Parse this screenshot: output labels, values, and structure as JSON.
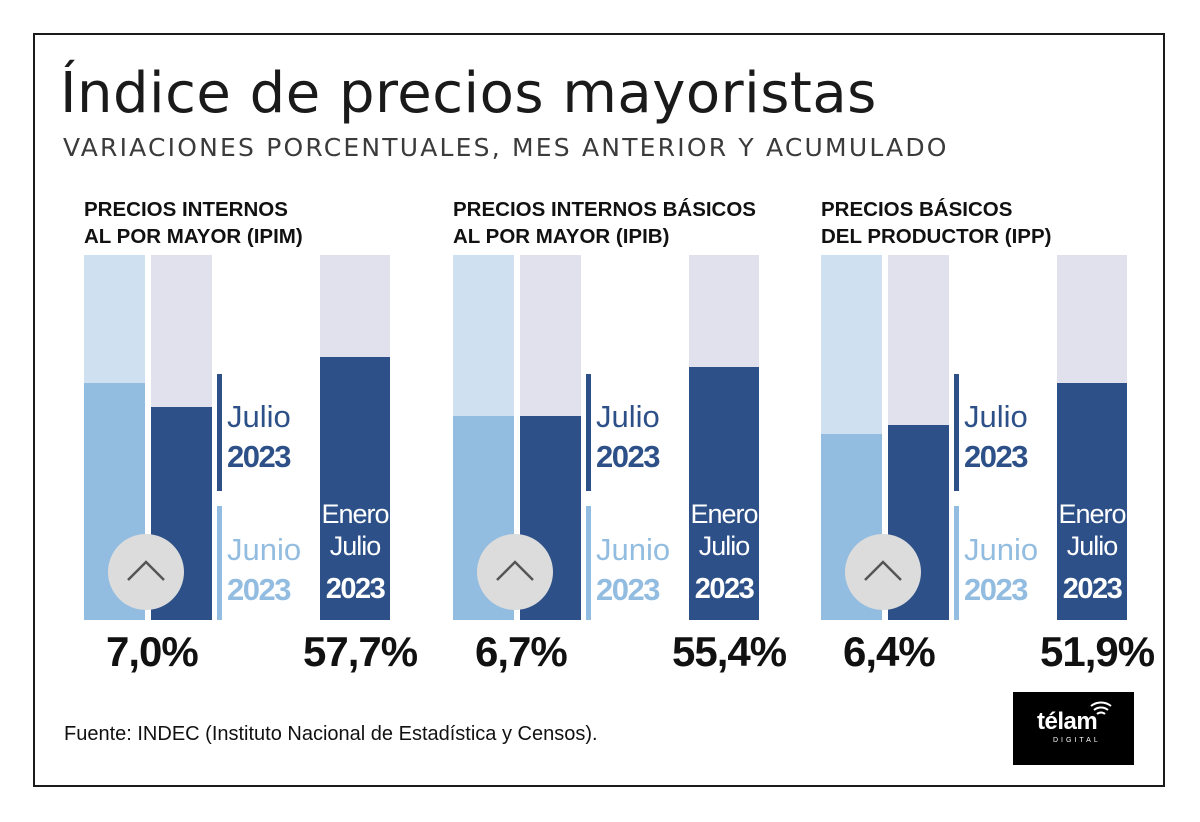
{
  "title": "Índice de precios mayoristas",
  "subtitle": "VARIACIONES PORCENTUALES, MES ANTERIOR Y ACUMULADO",
  "colors": {
    "current_fill": "#2c5087",
    "previous_fill": "#93bde0",
    "previous_track": "#cfe0f1",
    "track": "#e0e1ec"
  },
  "chart_data": [
    {
      "type": "bar",
      "title_line1": "PRECIOS INTERNOS",
      "title_line2": "AL POR MAYOR (IPIM)",
      "series": [
        {
          "label_line1": "Junio",
          "label_line2": "2023",
          "value": 7.8
        },
        {
          "label_line1": "Julio",
          "label_line2": "2023",
          "value": 7.0
        },
        {
          "label_line1": "Enero",
          "label_line2": "Julio",
          "label_line3": "2023",
          "value": 57.7
        }
      ],
      "value_month_text": "7,0%",
      "value_acc_text": "57,7%",
      "trend_icon": "chevron-up-icon"
    },
    {
      "type": "bar",
      "title_line1": "PRECIOS INTERNOS BÁSICOS",
      "title_line2": "AL POR MAYOR (IPIB)",
      "series": [
        {
          "label_line1": "Junio",
          "label_line2": "2023",
          "value": 6.7
        },
        {
          "label_line1": "Julio",
          "label_line2": "2023",
          "value": 6.7
        },
        {
          "label_line1": "Enero",
          "label_line2": "Julio",
          "label_line3": "2023",
          "value": 55.4
        }
      ],
      "value_month_text": "6,7%",
      "value_acc_text": "55,4%",
      "trend_icon": "chevron-up-icon"
    },
    {
      "type": "bar",
      "title_line1": "PRECIOS BÁSICOS",
      "title_line2": "DEL PRODUCTOR (IPP)",
      "series": [
        {
          "label_line1": "Junio",
          "label_line2": "2023",
          "value": 6.1
        },
        {
          "label_line1": "Julio",
          "label_line2": "2023",
          "value": 6.4
        },
        {
          "label_line1": "Enero",
          "label_line2": "Julio",
          "label_line3": "2023",
          "value": 51.9
        }
      ],
      "value_month_text": "6,4%",
      "value_acc_text": "51,9%",
      "trend_icon": "chevron-up-icon"
    }
  ],
  "footer": {
    "source": "Fuente: INDEC (Instituto Nacional de Estadística y Censos).",
    "logo_text": "télam",
    "logo_sub": "DIGITAL"
  }
}
